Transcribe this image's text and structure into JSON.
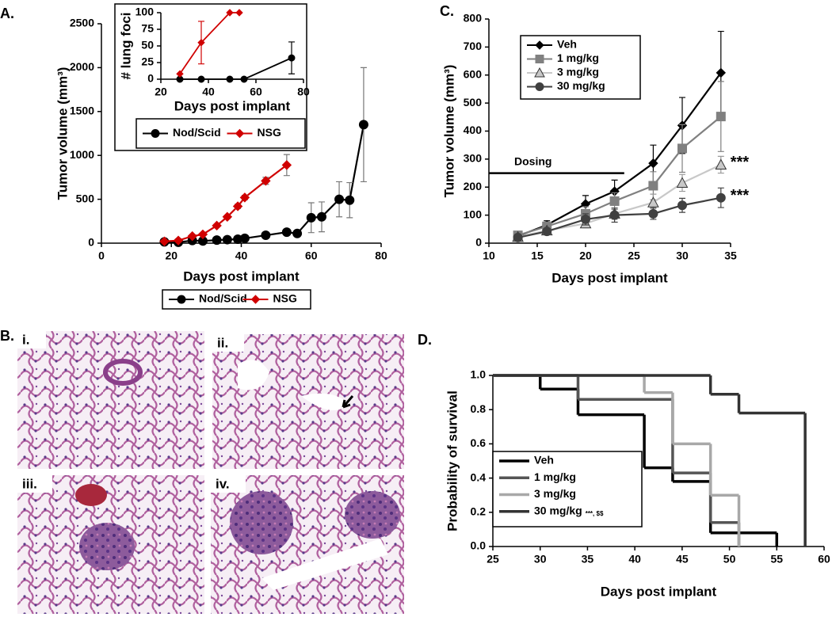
{
  "chart_data": [
    {
      "type": "line",
      "panel_label": "A.",
      "x_label": "Days post implant",
      "y_label": "Tumor volume (mm³)",
      "xlim": [
        0,
        80
      ],
      "xticks": [
        0,
        20,
        40,
        60,
        80
      ],
      "ylim": [
        0,
        2500
      ],
      "yticks": [
        0,
        500,
        1000,
        1500,
        2000,
        2500
      ],
      "series": [
        {
          "name": "Nod/Scid",
          "color": "#000000",
          "marker": "circle",
          "x": [
            18,
            22,
            26,
            29,
            33,
            36,
            39,
            41,
            47,
            53,
            56,
            60,
            63,
            68,
            71,
            75
          ],
          "values": [
            15,
            10,
            30,
            25,
            35,
            40,
            45,
            55,
            90,
            125,
            110,
            290,
            300,
            500,
            490,
            1350
          ],
          "errors": [
            5,
            5,
            8,
            8,
            10,
            10,
            10,
            12,
            20,
            30,
            30,
            170,
            170,
            200,
            200,
            650
          ]
        },
        {
          "name": "NSG",
          "color": "#d00000",
          "marker": "diamond",
          "x": [
            18,
            22,
            26,
            29,
            33,
            36,
            39,
            41,
            47,
            53
          ],
          "values": [
            20,
            30,
            80,
            100,
            200,
            300,
            420,
            520,
            710,
            890
          ],
          "errors": [
            5,
            8,
            10,
            12,
            15,
            20,
            25,
            25,
            40,
            120
          ]
        }
      ]
    },
    {
      "type": "line",
      "x_label": "Days post implant",
      "y_label": "# lung foci",
      "xlim": [
        20,
        80
      ],
      "xticks": [
        20,
        40,
        60,
        80
      ],
      "ylim": [
        0,
        100
      ],
      "yticks": [
        0,
        25,
        50,
        75,
        100
      ],
      "series": [
        {
          "name": "Nod/Scid",
          "color": "#000000",
          "marker": "circle",
          "x": [
            28,
            37,
            49,
            55,
            75
          ],
          "values": [
            0,
            0,
            0,
            0,
            32
          ],
          "errors": [
            0,
            0,
            0,
            0,
            24
          ]
        },
        {
          "name": "NSG",
          "color": "#d00000",
          "marker": "diamond",
          "x": [
            28,
            37,
            49,
            53
          ],
          "values": [
            8,
            55,
            100,
            100
          ],
          "errors": [
            0,
            32,
            0,
            0
          ]
        }
      ]
    },
    {
      "type": "line",
      "panel_label": "C.",
      "x_label": "Days post implant",
      "y_label": "Tumor volume (mm³)",
      "xlim": [
        10,
        35
      ],
      "xticks": [
        10,
        15,
        20,
        25,
        30,
        35
      ],
      "ylim": [
        0,
        800
      ],
      "yticks": [
        0,
        100,
        200,
        300,
        400,
        500,
        600,
        700,
        800
      ],
      "x": [
        13,
        16,
        20,
        23,
        27,
        30,
        34
      ],
      "dosing": {
        "text": "Dosing",
        "x": [
          10,
          24
        ],
        "y": 250
      },
      "series": [
        {
          "name": "Veh",
          "color": "#000000",
          "marker": "diamond",
          "values": [
            25,
            65,
            140,
            185,
            285,
            420,
            608
          ],
          "errors": [
            10,
            15,
            30,
            40,
            65,
            100,
            148
          ]
        },
        {
          "name": "1 mg/kg",
          "color": "#808080",
          "marker": "square",
          "values": [
            28,
            60,
            105,
            150,
            205,
            338,
            452
          ],
          "errors": [
            8,
            15,
            25,
            30,
            50,
            85,
            125
          ]
        },
        {
          "name": "3 mg/kg",
          "color": "#c8c8c8",
          "marker": "triangle",
          "values": [
            22,
            45,
            70,
            105,
            145,
            215,
            280
          ],
          "errors": [
            5,
            10,
            15,
            20,
            30,
            30,
            30
          ],
          "end_label": "***"
        },
        {
          "name": "30 mg/kg",
          "color": "#404040",
          "marker": "circle",
          "values": [
            20,
            42,
            85,
            100,
            105,
            135,
            162
          ],
          "errors": [
            5,
            10,
            20,
            25,
            20,
            25,
            35
          ],
          "end_label": "***"
        }
      ]
    },
    {
      "type": "step",
      "panel_label": "D.",
      "x_label": "Days post implant",
      "y_label": "Probability of survival",
      "xlim": [
        25,
        60
      ],
      "xticks": [
        25,
        30,
        35,
        40,
        45,
        50,
        55,
        60
      ],
      "ylim": [
        0,
        1
      ],
      "yticks": [
        {
          "value": 0,
          "label": "0.0"
        },
        0.2,
        0.4,
        0.6,
        0.8,
        {
          "value": 1,
          "label": "1.0"
        }
      ],
      "series": [
        {
          "name": "Veh",
          "color": "#000000",
          "x": [
            25,
            30,
            34,
            41,
            44,
            48,
            55
          ],
          "values": [
            1,
            0.92,
            0.77,
            0.46,
            0.38,
            0.08,
            0
          ]
        },
        {
          "name": "1 mg/kg",
          "color": "#555555",
          "x": [
            25,
            34,
            44,
            48,
            51
          ],
          "values": [
            1,
            0.86,
            0.43,
            0.14,
            0
          ]
        },
        {
          "name": "3 mg/kg",
          "color": "#a8a8a8",
          "x": [
            25,
            41,
            44,
            48,
            51
          ],
          "values": [
            1,
            0.9,
            0.6,
            0.3,
            0
          ]
        },
        {
          "name": "30 mg/kg",
          "note": "***, $$",
          "color": "#333333",
          "x": [
            25,
            48,
            51,
            58
          ],
          "values": [
            1,
            0.89,
            0.78,
            0
          ]
        }
      ]
    }
  ],
  "panel_b": {
    "label": "B.",
    "images": [
      "i.",
      "ii.",
      "iii.",
      "iv."
    ]
  }
}
